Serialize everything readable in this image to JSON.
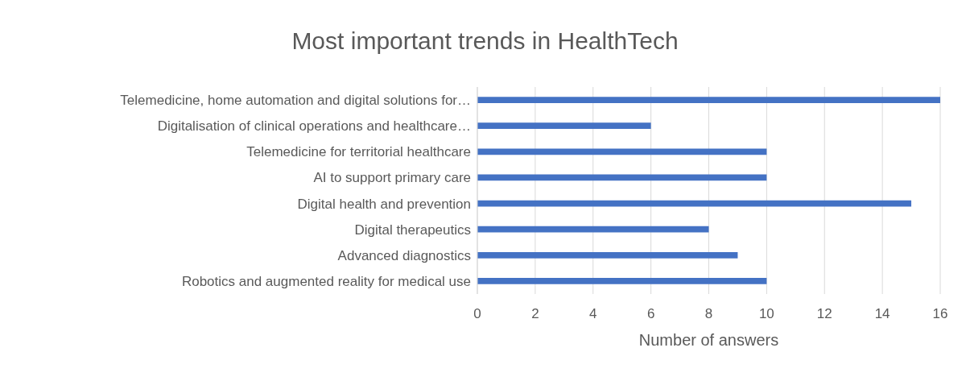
{
  "chart_data": {
    "type": "bar",
    "orientation": "horizontal",
    "title": "Most important trends in HealthTech",
    "xlabel": "Number of answers",
    "categories": [
      "Telemedicine, home automation and digital solutions for…",
      "Digitalisation of clinical operations and healthcare…",
      "Telemedicine for territorial healthcare",
      "AI to support primary care",
      "Digital health and prevention",
      "Digital therapeutics",
      "Advanced diagnostics",
      "Robotics and augmented reality for medical use"
    ],
    "values": [
      16,
      6,
      10,
      10,
      15,
      8,
      9,
      10
    ],
    "color": "#4472c4",
    "xlim": [
      0,
      16
    ],
    "xticks": [
      0,
      2,
      4,
      6,
      8,
      10,
      12,
      14,
      16
    ],
    "grid": "x"
  }
}
